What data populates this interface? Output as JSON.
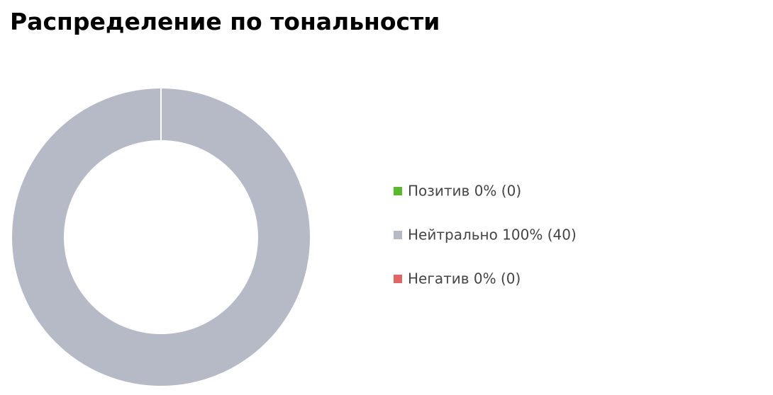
{
  "chart_data": {
    "type": "donut",
    "title": "Распределение по тональности",
    "categories": [
      "Позитив 0% (0)",
      "Нейтрально 100% (40)",
      "Негатив 0% (0)"
    ],
    "values": [
      0,
      100,
      0
    ],
    "colors": [
      "#5bb82c",
      "#b6b9c6",
      "#e06666"
    ]
  }
}
